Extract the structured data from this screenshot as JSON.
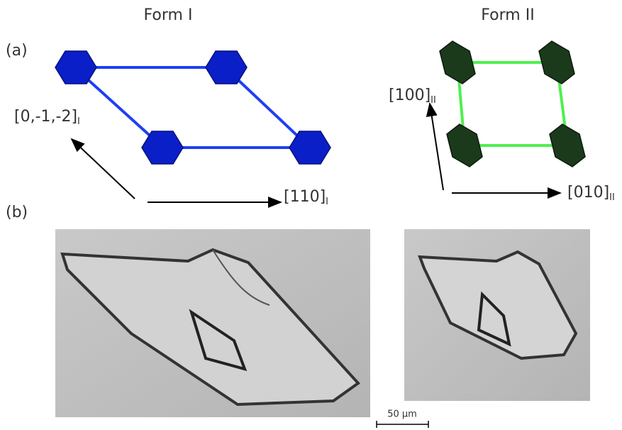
{
  "panels": {
    "a": {
      "label": "(a)"
    },
    "b": {
      "label": "(b)"
    }
  },
  "forms": [
    {
      "title": "Form I",
      "axes": [
        {
          "label": "[0,-1,-2]",
          "subscript": "I"
        },
        {
          "label": "[110]",
          "subscript": "I"
        }
      ]
    },
    {
      "title": "Form II",
      "axes": [
        {
          "label": "[100]",
          "subscript": "II"
        },
        {
          "label": "[010]",
          "subscript": "II"
        }
      ]
    }
  ],
  "scale_bar": "50 μm"
}
